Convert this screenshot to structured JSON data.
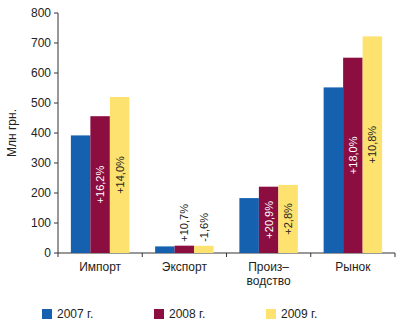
{
  "chart_data": {
    "type": "bar",
    "categories": [
      "Импорт",
      "Экспорт",
      "Произ–\nводство",
      "Рынок"
    ],
    "series": [
      {
        "name": "2007 г.",
        "color": "#1660b0",
        "values": [
          392,
          22,
          183,
          552
        ]
      },
      {
        "name": "2008 г.",
        "color": "#8c0d3f",
        "values": [
          456,
          24.4,
          221,
          651
        ]
      },
      {
        "name": "2009 г.",
        "color": "#fde26f",
        "values": [
          520,
          24,
          227,
          722
        ]
      }
    ],
    "y_label": "Млн грн.",
    "ylim": [
      0,
      800
    ],
    "yticks": [
      0,
      100,
      200,
      300,
      400,
      500,
      600,
      700,
      800
    ],
    "legend": "bottom",
    "annotations": [
      {
        "series": 1,
        "category": 0,
        "text": "+16,2%"
      },
      {
        "series": 2,
        "category": 0,
        "text": "+14,0%"
      },
      {
        "series": 1,
        "category": 1,
        "text": "+10,7%"
      },
      {
        "series": 2,
        "category": 1,
        "text": "-1,6%"
      },
      {
        "series": 1,
        "category": 2,
        "text": "+20,9%"
      },
      {
        "series": 2,
        "category": 2,
        "text": "+2,8%"
      },
      {
        "series": 1,
        "category": 3,
        "text": "+18,0%"
      },
      {
        "series": 2,
        "category": 3,
        "text": "+10,8%"
      }
    ]
  }
}
